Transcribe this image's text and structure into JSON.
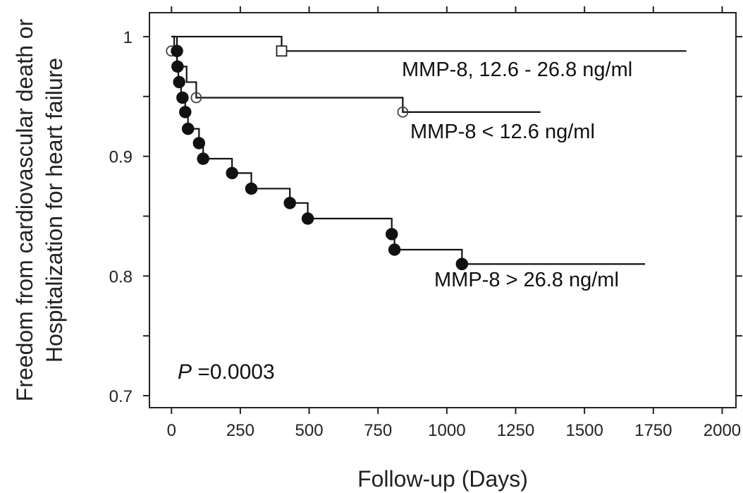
{
  "chart_data": {
    "type": "line",
    "subtype": "kaplan-meier",
    "title": "",
    "xlabel": "Follow-up (Days)",
    "ylabel_line1": "Freedom from cardiovascular death or",
    "ylabel_line2": "Hospitalization for heart failure",
    "xlim": [
      -80,
      2050
    ],
    "ylim": [
      0.69,
      1.02
    ],
    "x_ticks": [
      0,
      250,
      500,
      750,
      1000,
      1250,
      1500,
      1750,
      2000
    ],
    "x_tick_labels": [
      "0",
      "250",
      "500",
      "750",
      "1000",
      "1250",
      "1500",
      "1750",
      "2000"
    ],
    "y_ticks_major": [
      0.7,
      0.8,
      0.9,
      1.0
    ],
    "y_tick_labels": [
      "0.7",
      "0.8",
      "0.9",
      "1"
    ],
    "y_ticks_minor": [
      0.75,
      0.85,
      0.95
    ],
    "grid": false,
    "annotation_p_italic": "P",
    "annotation_p_value": " =0.0003",
    "series": [
      {
        "name": "MMP-8, 12.6 - 26.8 ng/ml",
        "marker": "open-square",
        "steps": [
          [
            0,
            1.0
          ],
          [
            400,
            0.988
          ],
          [
            1870,
            0.988
          ]
        ],
        "censor_points": [
          [
            400,
            0.988
          ]
        ]
      },
      {
        "name": "MMP-8 < 12.6 ng/ml",
        "marker": "open-circle",
        "steps": [
          [
            0,
            1.0
          ],
          [
            20,
            0.975
          ],
          [
            55,
            0.962
          ],
          [
            90,
            0.949
          ],
          [
            840,
            0.937
          ],
          [
            1340,
            0.937
          ]
        ],
        "censor_points": [
          [
            0,
            0.988
          ],
          [
            90,
            0.949
          ],
          [
            840,
            0.937
          ]
        ]
      },
      {
        "name": "MMP-8 > 26.8 ng/ml",
        "marker": "filled-circle",
        "steps": [
          [
            0,
            1.0
          ],
          [
            10,
            0.988
          ],
          [
            20,
            0.975
          ],
          [
            25,
            0.962
          ],
          [
            35,
            0.949
          ],
          [
            50,
            0.937
          ],
          [
            60,
            0.923
          ],
          [
            100,
            0.911
          ],
          [
            115,
            0.898
          ],
          [
            220,
            0.886
          ],
          [
            290,
            0.873
          ],
          [
            430,
            0.861
          ],
          [
            495,
            0.848
          ],
          [
            800,
            0.835
          ],
          [
            810,
            0.822
          ],
          [
            1055,
            0.81
          ],
          [
            1720,
            0.81
          ]
        ],
        "censor_points": [
          [
            20,
            0.988
          ],
          [
            22,
            0.975
          ],
          [
            28,
            0.962
          ],
          [
            40,
            0.949
          ],
          [
            50,
            0.937
          ],
          [
            60,
            0.923
          ],
          [
            100,
            0.911
          ],
          [
            115,
            0.898
          ],
          [
            220,
            0.886
          ],
          [
            290,
            0.873
          ],
          [
            430,
            0.861
          ],
          [
            495,
            0.848
          ],
          [
            800,
            0.835
          ],
          [
            810,
            0.822
          ],
          [
            1055,
            0.81
          ]
        ]
      }
    ]
  }
}
